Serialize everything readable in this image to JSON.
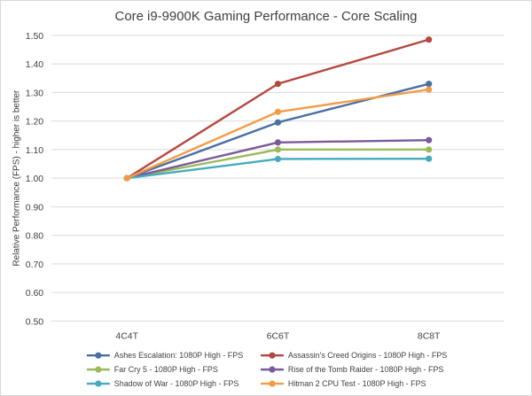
{
  "chart_data": {
    "type": "line",
    "title": "Core i9-9900K Gaming Performance - Core Scaling",
    "xlabel": "",
    "ylabel": "Relative Performance (FPS) - higher is better",
    "categories": [
      "4C4T",
      "6C6T",
      "8C8T"
    ],
    "ylim": [
      0.5,
      1.5
    ],
    "yticks": [
      "0.50",
      "0.60",
      "0.70",
      "0.80",
      "0.90",
      "1.00",
      "1.10",
      "1.20",
      "1.30",
      "1.40",
      "1.50"
    ],
    "grid": true,
    "legend_position": "bottom",
    "series": [
      {
        "name": "Ashes Escalation: 1080P High - FPS",
        "values": [
          1.0,
          1.195,
          1.33
        ],
        "color": "#4a6fa5"
      },
      {
        "name": "Assassin's Creed Origins - 1080P High - FPS",
        "values": [
          1.0,
          1.33,
          1.485
        ],
        "color": "#b5473f"
      },
      {
        "name": "Far Cry 5 - 1080P High - FPS",
        "values": [
          1.0,
          1.1,
          1.1
        ],
        "color": "#9bbb59"
      },
      {
        "name": "Rise of the Tomb Raider - 1080P High - FPS",
        "values": [
          1.0,
          1.125,
          1.133
        ],
        "color": "#7a5a9a"
      },
      {
        "name": "Shadow of War - 1080P High - FPS",
        "values": [
          1.0,
          1.067,
          1.068
        ],
        "color": "#46aabf"
      },
      {
        "name": "Hitman 2 CPU Test - 1080P High - FPS",
        "values": [
          1.0,
          1.232,
          1.31
        ],
        "color": "#f39c45"
      }
    ]
  }
}
